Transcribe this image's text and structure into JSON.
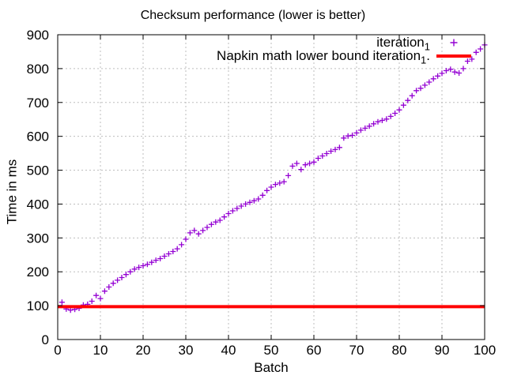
{
  "title": "Checksum performance (lower is better)",
  "chart_data": {
    "type": "scatter",
    "title": "Checksum performance (lower is better)",
    "xlabel": "Batch",
    "ylabel": "Time in ms",
    "xlim": [
      0,
      100
    ],
    "ylim": [
      0,
      900
    ],
    "x_ticks": [
      0,
      10,
      20,
      30,
      40,
      50,
      60,
      70,
      80,
      90,
      100
    ],
    "y_ticks": [
      0,
      100,
      200,
      300,
      400,
      500,
      600,
      700,
      800,
      900
    ],
    "grid": "dashed-gray-both-axes",
    "legend_position": "top-right-inside",
    "colors": {
      "background": "#ffffff",
      "border": "#000000",
      "grid": "#bdbdbd",
      "text": "#000000"
    },
    "series": [
      {
        "name": "iteration_1",
        "label_base": "iteration",
        "label_sub": "1",
        "label_suffix": "",
        "type": "points",
        "marker": "plus",
        "color": "#9400d3",
        "x": [
          1,
          2,
          3,
          4,
          5,
          6,
          7,
          8,
          9,
          10,
          11,
          12,
          13,
          14,
          15,
          16,
          17,
          18,
          19,
          20,
          21,
          22,
          23,
          24,
          25,
          26,
          27,
          28,
          29,
          30,
          31,
          32,
          33,
          34,
          35,
          36,
          37,
          38,
          39,
          40,
          41,
          42,
          43,
          44,
          45,
          46,
          47,
          48,
          49,
          50,
          51,
          52,
          53,
          54,
          55,
          56,
          57,
          58,
          59,
          60,
          61,
          62,
          63,
          64,
          65,
          66,
          67,
          68,
          69,
          70,
          71,
          72,
          73,
          74,
          75,
          76,
          77,
          78,
          79,
          80,
          81,
          82,
          83,
          84,
          85,
          86,
          87,
          88,
          89,
          90,
          91,
          92,
          93,
          94,
          95,
          96,
          97,
          98,
          99,
          100
        ],
        "y": [
          110,
          90,
          87,
          89,
          92,
          102,
          104,
          113,
          130,
          121,
          143,
          155,
          166,
          175,
          183,
          192,
          200,
          208,
          213,
          218,
          222,
          228,
          234,
          239,
          246,
          253,
          260,
          268,
          280,
          296,
          315,
          322,
          312,
          322,
          331,
          340,
          347,
          352,
          362,
          372,
          380,
          387,
          394,
          400,
          405,
          410,
          415,
          426,
          440,
          450,
          458,
          462,
          466,
          484,
          512,
          520,
          502,
          516,
          520,
          524,
          535,
          542,
          549,
          556,
          561,
          567,
          595,
          601,
          603,
          610,
          618,
          624,
          630,
          637,
          643,
          647,
          651,
          659,
          668,
          678,
          692,
          706,
          720,
          735,
          742,
          751,
          760,
          770,
          778,
          786,
          794,
          798,
          790,
          787,
          800,
          822,
          828,
          848,
          858,
          870
        ]
      },
      {
        "name": "Napkin math lower bound iteration_1.",
        "label_base": "Napkin math lower bound iteration",
        "label_sub": "1",
        "label_suffix": ".",
        "type": "hline",
        "color": "#ff0000",
        "value": 97,
        "line_width": 4
      }
    ]
  }
}
